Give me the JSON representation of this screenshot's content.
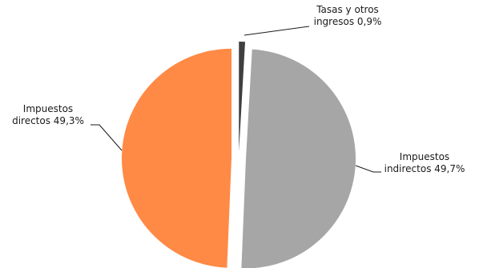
{
  "chart_data": {
    "type": "pie",
    "title": "",
    "slices": [
      {
        "label_lines": [
          "Tasas y otros",
          "ingresos 0,9%"
        ],
        "value": 0.9,
        "color": "#3f3f3f"
      },
      {
        "label_lines": [
          "Impuestos",
          "indirectos 49,7%"
        ],
        "value": 49.7,
        "color": "#a6a6a6"
      },
      {
        "label_lines": [
          "Impuestos",
          "directos 49,3%"
        ],
        "value": 49.3,
        "color": "#ff8a45"
      }
    ],
    "start_angle_deg": 0,
    "direction": "clockwise",
    "exploded": true,
    "legend": "none"
  }
}
